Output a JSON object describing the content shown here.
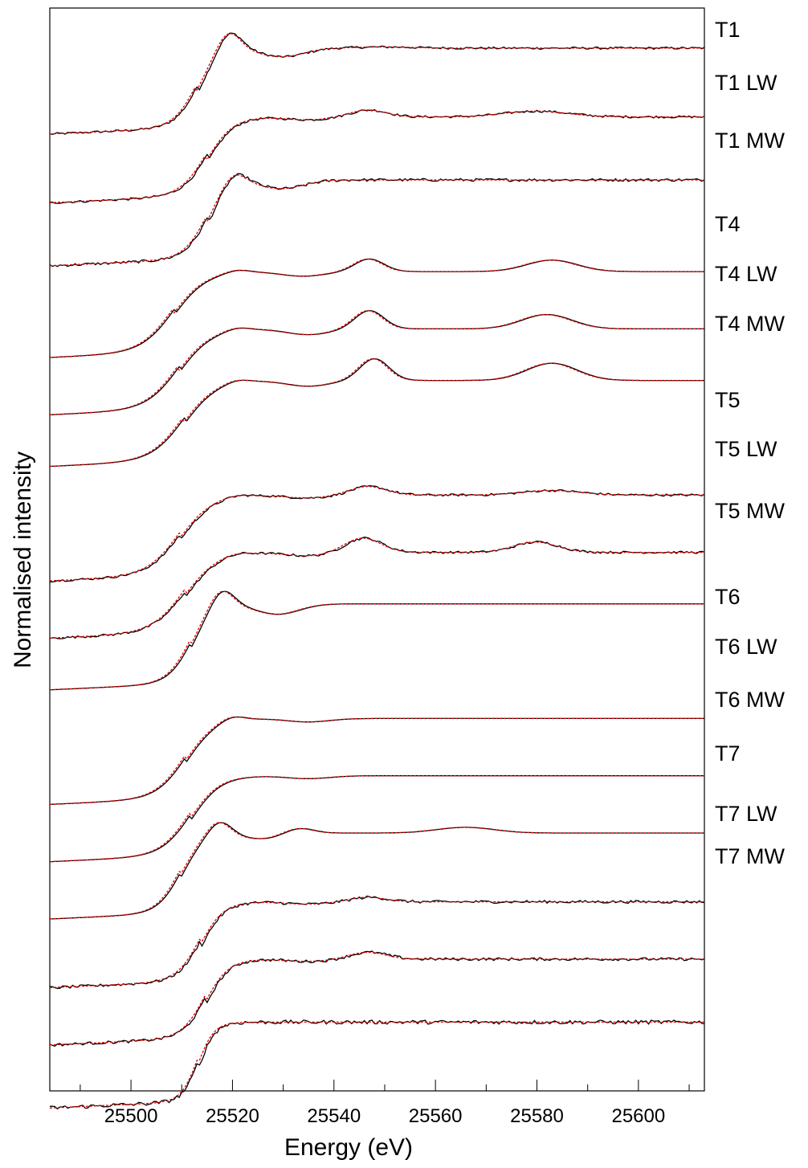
{
  "chart_data": {
    "type": "line",
    "title": "",
    "xlabel": "Energy (eV)",
    "ylabel": "Normalised intensity",
    "xlim": [
      25484,
      25613
    ],
    "xticks": [
      25500,
      25520,
      25540,
      25560,
      25580,
      25600
    ],
    "minor_xtick_step": 10,
    "yticks": [],
    "grid": false,
    "legend": "none",
    "colors": {
      "measured": "#000000",
      "fit": "#e00000",
      "frame": "#000000"
    },
    "series": [
      {
        "name": "T1",
        "offset": 14.2,
        "edge": 25513.3,
        "width": 2.3,
        "peak": 0.35,
        "peak_e": 25519.5,
        "dip": 0.15,
        "dip_e": 25530,
        "osc": [
          [
            25550,
            0.02,
            8
          ]
        ],
        "noise": 0.02,
        "lead": 0.0
      },
      {
        "name": "T1 LW",
        "offset": 13.0,
        "edge": 25515.3,
        "width": 2.6,
        "peak": 0.0,
        "peak_e": 25521,
        "dip": 0.05,
        "dip_e": 25535,
        "osc": [
          [
            25547,
            0.12,
            5
          ],
          [
            25580,
            0.1,
            9
          ]
        ],
        "noise": 0.02,
        "lead": 0.0
      },
      {
        "name": "T1 MW",
        "offset": 11.9,
        "edge": 25515.3,
        "width": 2.3,
        "peak": 0.22,
        "peak_e": 25520.5,
        "dip": 0.15,
        "dip_e": 25530,
        "osc": [],
        "noise": 0.025,
        "lead": 0.0
      },
      {
        "name": "T4",
        "offset": 10.3,
        "edge": 25508.6,
        "width": 3.2,
        "peak": 0.05,
        "peak_e": 25521,
        "dip": 0.08,
        "dip_e": 25534,
        "osc": [
          [
            25547,
            0.22,
            4
          ],
          [
            25583,
            0.2,
            7
          ]
        ],
        "noise": 0.0,
        "lead": 0.0
      },
      {
        "name": "T4 LW",
        "offset": 9.3,
        "edge": 25509.6,
        "width": 3.2,
        "peak": 0.05,
        "peak_e": 25521,
        "dip": 0.1,
        "dip_e": 25535,
        "osc": [
          [
            25547,
            0.32,
            4
          ],
          [
            25582,
            0.25,
            7
          ]
        ],
        "noise": 0.0,
        "lead": 0.0
      },
      {
        "name": "T4 MW",
        "offset": 8.4,
        "edge": 25510.6,
        "width": 3.2,
        "peak": 0.05,
        "peak_e": 25521,
        "dip": 0.1,
        "dip_e": 25535,
        "osc": [
          [
            25548,
            0.38,
            4
          ],
          [
            25583,
            0.3,
            7
          ]
        ],
        "noise": 0.0,
        "lead": 0.0
      },
      {
        "name": "T5",
        "offset": 6.4,
        "edge": 25510.0,
        "width": 3.2,
        "peak": 0.03,
        "peak_e": 25521,
        "dip": 0.05,
        "dip_e": 25535,
        "osc": [
          [
            25547,
            0.15,
            5
          ],
          [
            25583,
            0.08,
            8
          ]
        ],
        "noise": 0.02,
        "lead": 0.0
      },
      {
        "name": "T5 LW",
        "offset": 5.4,
        "edge": 25511.0,
        "width": 3.2,
        "peak": 0.03,
        "peak_e": 25521,
        "dip": 0.06,
        "dip_e": 25535,
        "osc": [
          [
            25546,
            0.25,
            5
          ],
          [
            25580,
            0.18,
            6
          ]
        ],
        "noise": 0.02,
        "lead": 0.0
      },
      {
        "name": "T5 MW",
        "offset": 4.5,
        "edge": 25512.0,
        "width": 2.3,
        "peak": 0.32,
        "peak_e": 25518,
        "dip": 0.18,
        "dip_e": 25529,
        "osc": [],
        "noise": 0.0,
        "lead": 0.0
      },
      {
        "name": "T6",
        "offset": 2.5,
        "edge": 25511.0,
        "width": 2.9,
        "peak": 0.08,
        "peak_e": 25520,
        "dip": 0.06,
        "dip_e": 25535,
        "osc": [],
        "noise": 0.0,
        "lead": 0.0
      },
      {
        "name": "T6 LW",
        "offset": 1.5,
        "edge": 25512.0,
        "width": 2.9,
        "peak": 0.0,
        "peak_e": 25520,
        "dip": 0.05,
        "dip_e": 25535,
        "osc": [],
        "noise": 0.0,
        "lead": 0.0
      },
      {
        "name": "T6 MW",
        "offset": 0.5,
        "edge": 25510.0,
        "width": 2.3,
        "peak": 0.25,
        "peak_e": 25517.5,
        "dip": 0.1,
        "dip_e": 25526,
        "osc": [
          [
            25533,
            0.1,
            4
          ],
          [
            25566,
            0.1,
            8
          ]
        ],
        "noise": 0.0,
        "lead": 0.0
      },
      {
        "name": "T7",
        "offset": -0.7,
        "edge": 25514.0,
        "width": 2.3,
        "peak": 0.0,
        "peak_e": 25520,
        "dip": 0.04,
        "dip_e": 25535,
        "osc": [
          [
            25547,
            0.08,
            5
          ]
        ],
        "noise": 0.025,
        "lead": 0.0
      },
      {
        "name": "T7 LW",
        "offset": -1.7,
        "edge": 25515.0,
        "width": 2.3,
        "peak": 0.0,
        "peak_e": 25520,
        "dip": 0.04,
        "dip_e": 25535,
        "osc": [
          [
            25547,
            0.12,
            5
          ]
        ],
        "noise": 0.025,
        "lead": 0.0
      },
      {
        "name": "T7 MW",
        "offset": -2.8,
        "edge": 25513.5,
        "width": 1.6,
        "peak": 0.0,
        "peak_e": 25520,
        "dip": 0.0,
        "dip_e": 25535,
        "osc": [],
        "noise": 0.035,
        "lead": 0.0
      }
    ]
  }
}
